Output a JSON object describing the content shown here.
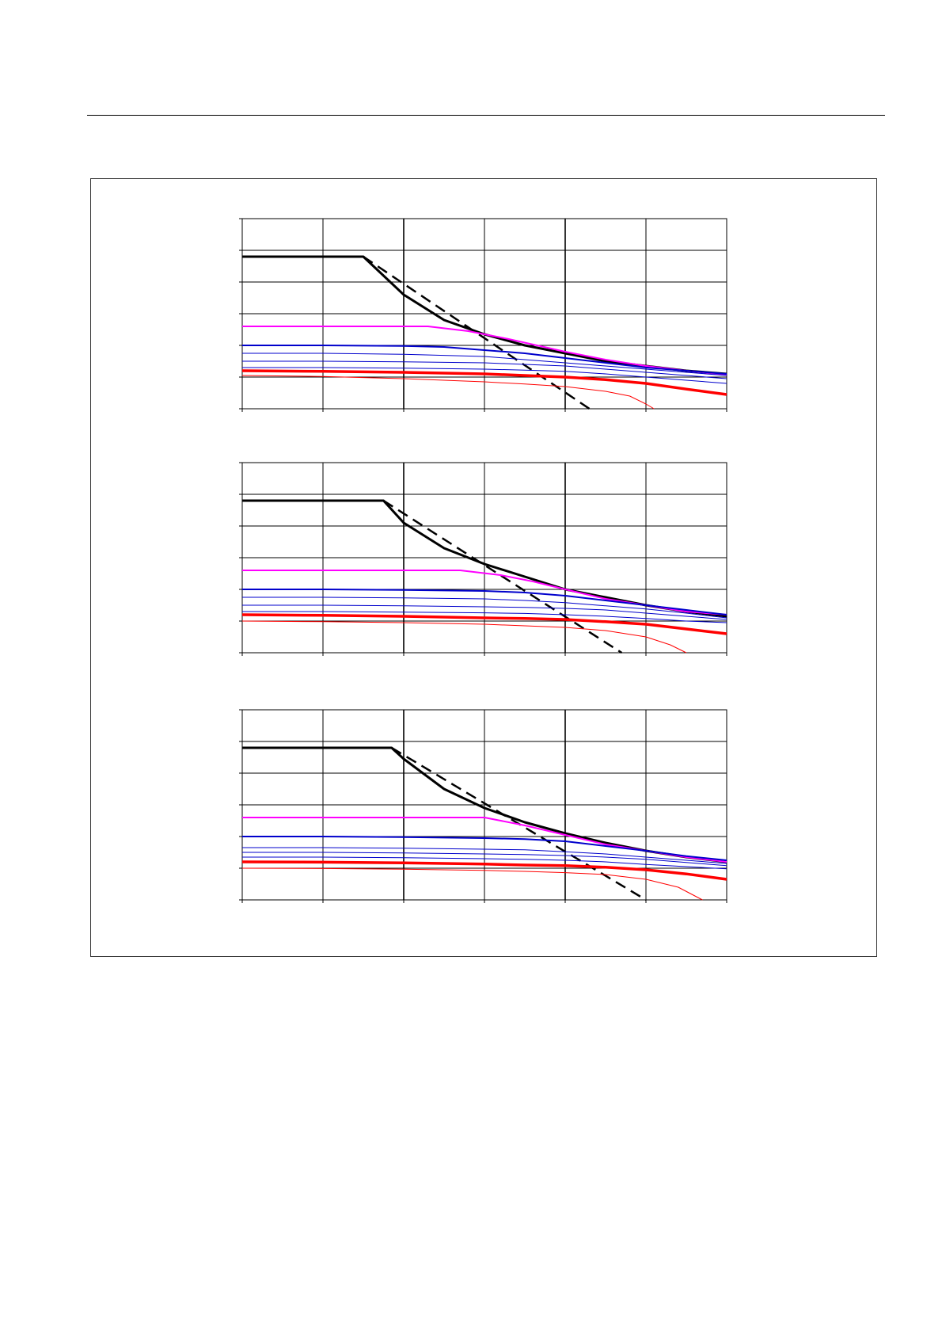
{
  "colors": {
    "black": "#000000",
    "magenta": "#ff00ff",
    "blue": "#0000cc",
    "red": "#ff0000",
    "grid": "#000000"
  },
  "chart_data": [
    {
      "type": "line",
      "title": "",
      "xlabel": "",
      "ylabel": "",
      "xlim": [
        0,
        6
      ],
      "ylim": [
        0,
        6
      ],
      "grid": true,
      "series": [
        {
          "color": "black",
          "width": 3,
          "dash": false,
          "x": [
            0,
            1.5,
            2,
            2.5,
            3,
            3.5,
            4,
            4.5,
            5,
            5.5,
            6
          ],
          "y": [
            4.8,
            4.8,
            3.6,
            2.8,
            2.35,
            2.0,
            1.75,
            1.5,
            1.35,
            1.2,
            1.1
          ]
        },
        {
          "color": "black",
          "width": 2.5,
          "dash": true,
          "x": [
            1.5,
            4.3
          ],
          "y": [
            4.8,
            0
          ]
        },
        {
          "color": "magenta",
          "width": 2,
          "dash": false,
          "x": [
            0,
            2.3,
            2.8,
            3.3,
            4,
            4.5,
            5,
            5.5,
            6
          ],
          "y": [
            2.6,
            2.6,
            2.45,
            2.2,
            1.8,
            1.55,
            1.35,
            1.2,
            1.08
          ]
        },
        {
          "color": "blue",
          "width": 2,
          "dash": false,
          "x": [
            0,
            1,
            2,
            2.5,
            3,
            3.5,
            4,
            4.5,
            5,
            5.5,
            6
          ],
          "y": [
            2.0,
            2.0,
            1.98,
            1.95,
            1.85,
            1.75,
            1.6,
            1.45,
            1.3,
            1.2,
            1.1
          ]
        },
        {
          "color": "blue",
          "width": 1,
          "dash": false,
          "x": [
            0,
            1,
            2,
            3,
            3.5,
            4,
            4.5,
            5,
            5.5,
            6
          ],
          "y": [
            1.75,
            1.75,
            1.72,
            1.65,
            1.55,
            1.45,
            1.35,
            1.25,
            1.15,
            1.05
          ]
        },
        {
          "color": "blue",
          "width": 1,
          "dash": false,
          "x": [
            0,
            1,
            2,
            3,
            3.5,
            4,
            4.5,
            5,
            5.5,
            6
          ],
          "y": [
            1.5,
            1.5,
            1.48,
            1.45,
            1.4,
            1.35,
            1.25,
            1.15,
            1.05,
            0.95
          ]
        },
        {
          "color": "blue",
          "width": 1,
          "dash": false,
          "x": [
            0,
            1,
            2,
            3,
            3.5,
            4,
            4.5,
            5,
            5.5,
            6
          ],
          "y": [
            1.3,
            1.3,
            1.28,
            1.25,
            1.22,
            1.18,
            1.1,
            1.0,
            0.9,
            0.8
          ]
        },
        {
          "color": "red",
          "width": 3.5,
          "dash": false,
          "x": [
            0,
            1,
            2,
            3,
            3.5,
            4,
            4.5,
            5,
            5.5,
            6
          ],
          "y": [
            1.2,
            1.18,
            1.15,
            1.1,
            1.05,
            1.0,
            0.92,
            0.8,
            0.62,
            0.45
          ]
        },
        {
          "color": "red",
          "width": 1,
          "dash": false,
          "x": [
            0,
            1,
            2,
            3,
            3.5,
            4,
            4.5,
            4.8,
            5.0,
            5.1
          ],
          "y": [
            1.05,
            1.02,
            0.95,
            0.85,
            0.78,
            0.7,
            0.55,
            0.4,
            0.15,
            0
          ]
        }
      ]
    },
    {
      "type": "line",
      "title": "",
      "xlabel": "",
      "ylabel": "",
      "xlim": [
        0,
        6
      ],
      "ylim": [
        0,
        6
      ],
      "grid": true,
      "series": [
        {
          "color": "black",
          "width": 3,
          "dash": false,
          "x": [
            0,
            1.75,
            2,
            2.5,
            3,
            3.5,
            4,
            4.5,
            5,
            5.5,
            6
          ],
          "y": [
            4.8,
            4.8,
            4.1,
            3.3,
            2.8,
            2.4,
            2.0,
            1.75,
            1.5,
            1.3,
            1.15
          ]
        },
        {
          "color": "black",
          "width": 2.5,
          "dash": true,
          "x": [
            1.75,
            4.7
          ],
          "y": [
            4.8,
            0
          ]
        },
        {
          "color": "magenta",
          "width": 2,
          "dash": false,
          "x": [
            0,
            2.7,
            3.2,
            3.6,
            4,
            4.5,
            5,
            5.5,
            6
          ],
          "y": [
            2.6,
            2.6,
            2.45,
            2.25,
            2.0,
            1.7,
            1.5,
            1.3,
            1.2
          ]
        },
        {
          "color": "blue",
          "width": 2,
          "dash": false,
          "x": [
            0,
            1,
            2,
            3,
            3.5,
            4,
            4.5,
            5,
            5.5,
            6
          ],
          "y": [
            2.0,
            2.0,
            1.98,
            1.95,
            1.9,
            1.8,
            1.65,
            1.5,
            1.35,
            1.2
          ]
        },
        {
          "color": "blue",
          "width": 1,
          "dash": false,
          "x": [
            0,
            1,
            2,
            3,
            3.5,
            4,
            4.5,
            5,
            5.5,
            6
          ],
          "y": [
            1.75,
            1.75,
            1.73,
            1.7,
            1.65,
            1.58,
            1.48,
            1.38,
            1.25,
            1.1
          ]
        },
        {
          "color": "blue",
          "width": 1,
          "dash": false,
          "x": [
            0,
            1,
            2,
            3,
            3.5,
            4,
            4.5,
            5,
            5.5,
            6
          ],
          "y": [
            1.5,
            1.5,
            1.48,
            1.45,
            1.43,
            1.4,
            1.35,
            1.25,
            1.15,
            1.05
          ]
        },
        {
          "color": "blue",
          "width": 1,
          "dash": false,
          "x": [
            0,
            1,
            2,
            3,
            3.5,
            4,
            4.5,
            5,
            5.5,
            6
          ],
          "y": [
            1.3,
            1.3,
            1.28,
            1.26,
            1.24,
            1.2,
            1.15,
            1.08,
            1.0,
            0.95
          ]
        },
        {
          "color": "red",
          "width": 3.5,
          "dash": false,
          "x": [
            0,
            1,
            2,
            3,
            3.5,
            4,
            4.5,
            5,
            5.5,
            6
          ],
          "y": [
            1.2,
            1.18,
            1.15,
            1.1,
            1.08,
            1.05,
            0.98,
            0.9,
            0.75,
            0.6
          ]
        },
        {
          "color": "red",
          "width": 1,
          "dash": false,
          "x": [
            0,
            1,
            2,
            3,
            3.5,
            4,
            4.5,
            5,
            5.3,
            5.5
          ],
          "y": [
            1.0,
            0.98,
            0.95,
            0.9,
            0.85,
            0.8,
            0.7,
            0.5,
            0.25,
            0
          ]
        }
      ]
    },
    {
      "type": "line",
      "title": "",
      "xlabel": "",
      "ylabel": "",
      "xlim": [
        0,
        6
      ],
      "ylim": [
        0,
        6
      ],
      "grid": true,
      "series": [
        {
          "color": "black",
          "width": 3,
          "dash": false,
          "x": [
            0,
            1.85,
            2,
            2.5,
            3,
            3.5,
            4,
            4.5,
            5,
            5.5,
            6
          ],
          "y": [
            4.8,
            4.8,
            4.45,
            3.5,
            2.9,
            2.45,
            2.1,
            1.8,
            1.55,
            1.35,
            1.2
          ]
        },
        {
          "color": "black",
          "width": 2.5,
          "dash": true,
          "x": [
            1.85,
            5.0
          ],
          "y": [
            4.8,
            0
          ]
        },
        {
          "color": "magenta",
          "width": 2,
          "dash": false,
          "x": [
            0,
            3.0,
            3.5,
            4,
            4.5,
            5,
            5.5,
            6
          ],
          "y": [
            2.6,
            2.6,
            2.35,
            2.05,
            1.75,
            1.55,
            1.35,
            1.2
          ]
        },
        {
          "color": "blue",
          "width": 2,
          "dash": false,
          "x": [
            0,
            1,
            2,
            3,
            3.5,
            4,
            4.5,
            5,
            5.5,
            6
          ],
          "y": [
            2.0,
            2.0,
            1.98,
            1.95,
            1.92,
            1.85,
            1.7,
            1.55,
            1.38,
            1.25
          ]
        },
        {
          "color": "blue",
          "width": 1,
          "dash": false,
          "x": [
            0,
            1,
            2,
            3,
            3.5,
            4,
            4.5,
            5,
            5.5,
            6
          ],
          "y": [
            1.65,
            1.65,
            1.63,
            1.6,
            1.58,
            1.52,
            1.45,
            1.35,
            1.25,
            1.15
          ]
        },
        {
          "color": "blue",
          "width": 1,
          "dash": false,
          "x": [
            0,
            1,
            2,
            3,
            3.5,
            4,
            4.5,
            5,
            5.5,
            6
          ],
          "y": [
            1.5,
            1.5,
            1.48,
            1.45,
            1.43,
            1.4,
            1.35,
            1.28,
            1.18,
            1.08
          ]
        },
        {
          "color": "blue",
          "width": 1,
          "dash": false,
          "x": [
            0,
            1,
            2,
            3,
            3.5,
            4,
            4.5,
            5,
            5.5,
            6
          ],
          "y": [
            1.35,
            1.35,
            1.33,
            1.3,
            1.28,
            1.25,
            1.2,
            1.12,
            1.05,
            0.98
          ]
        },
        {
          "color": "red",
          "width": 3.5,
          "dash": false,
          "x": [
            0,
            1,
            2,
            3,
            3.5,
            4,
            4.5,
            5,
            5.5,
            6
          ],
          "y": [
            1.2,
            1.19,
            1.17,
            1.13,
            1.1,
            1.08,
            1.03,
            0.95,
            0.82,
            0.65
          ]
        },
        {
          "color": "red",
          "width": 1,
          "dash": false,
          "x": [
            0,
            1,
            2,
            3,
            3.5,
            4,
            4.5,
            5,
            5.4,
            5.7
          ],
          "y": [
            1.0,
            0.99,
            0.97,
            0.93,
            0.9,
            0.86,
            0.8,
            0.65,
            0.4,
            0
          ]
        }
      ]
    }
  ]
}
